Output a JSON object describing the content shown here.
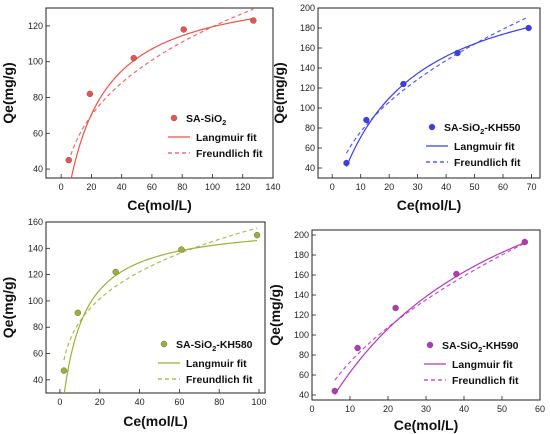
{
  "chart_data": [
    {
      "type": "scatter",
      "x_label": "Ce(mol/L)",
      "y_label": "Qe(mg/g)",
      "xlim": [
        -10,
        140
      ],
      "ylim": [
        35,
        130
      ],
      "x_ticks": [
        0,
        20,
        40,
        60,
        80,
        100,
        120,
        140
      ],
      "y_ticks": [
        40,
        60,
        80,
        100,
        120
      ],
      "color": "#e8534f",
      "legend": {
        "marker_label": "SA-SiO",
        "marker_label_sub": "2",
        "marker_label_suffix": "",
        "langmuir_label": "Langmuir fit",
        "freundlich_label": "Freundlich fit"
      },
      "points": [
        {
          "x": 5,
          "y": 45
        },
        {
          "x": 19,
          "y": 82
        },
        {
          "x": 48,
          "y": 102
        },
        {
          "x": 81,
          "y": 118
        },
        {
          "x": 127,
          "y": 123
        }
      ],
      "langmuir": {
        "qmax": 144.6,
        "K": 0.0476
      },
      "freundlich": {
        "k": 25.88,
        "n": 3.01
      }
    },
    {
      "type": "scatter",
      "x_label": "Ce(mol/L)",
      "y_label": "Qe(mg/g)",
      "xlim": [
        -5,
        73
      ],
      "ylim": [
        30,
        200
      ],
      "x_ticks": [
        0,
        10,
        20,
        30,
        40,
        50,
        60,
        70
      ],
      "y_ticks": [
        40,
        60,
        80,
        100,
        120,
        140,
        160,
        180,
        200
      ],
      "color": "#3a3ee6",
      "legend": {
        "marker_label": "SA-SiO",
        "marker_label_sub": "2",
        "marker_label_suffix": "-KH550",
        "langmuir_label": "Langmuir fit",
        "freundlich_label": "Freundlich fit"
      },
      "points": [
        {
          "x": 5,
          "y": 45
        },
        {
          "x": 12,
          "y": 88
        },
        {
          "x": 25,
          "y": 124
        },
        {
          "x": 44,
          "y": 155
        },
        {
          "x": 69,
          "y": 180
        }
      ],
      "langmuir": {
        "qmax": 245.1,
        "K": 0.0406
      },
      "freundlich": {
        "k": 25.45,
        "n": 2.1
      }
    },
    {
      "type": "scatter",
      "x_label": "Ce(mol/L)",
      "y_label": "Qe(mg/g)",
      "xlim": [
        -7,
        103
      ],
      "ylim": [
        30,
        160
      ],
      "x_ticks": [
        0,
        20,
        40,
        60,
        80,
        100
      ],
      "y_ticks": [
        40,
        60,
        80,
        100,
        120,
        140,
        160
      ],
      "color": "#9aaf3c",
      "legend": {
        "marker_label": "SA-SiO",
        "marker_label_sub": "2",
        "marker_label_suffix": "-KH580",
        "langmuir_label": "Langmuir fit",
        "freundlich_label": "Freundlich fit"
      },
      "points": [
        {
          "x": 2,
          "y": 47
        },
        {
          "x": 9,
          "y": 91
        },
        {
          "x": 28,
          "y": 122
        },
        {
          "x": 61,
          "y": 139
        },
        {
          "x": 99,
          "y": 150
        }
      ],
      "langmuir": {
        "qmax": 159.9,
        "K": 0.105
      },
      "freundlich": {
        "k": 45.78,
        "n": 3.76
      }
    },
    {
      "type": "scatter",
      "x_label": "Ce(mol/L)",
      "y_label": "Qe(mg/g)",
      "xlim": [
        0,
        60
      ],
      "ylim": [
        35,
        205
      ],
      "x_ticks": [
        0,
        10,
        20,
        30,
        40,
        50,
        60
      ],
      "y_ticks": [
        40,
        60,
        80,
        100,
        120,
        140,
        160,
        180,
        200
      ],
      "color": "#b137b5",
      "legend": {
        "marker_label": "SA-SiO",
        "marker_label_sub": "2",
        "marker_label_suffix": "-KH590",
        "langmuir_label": "Langmuir fit",
        "freundlich_label": "Freundlich fit"
      },
      "points": [
        {
          "x": 6,
          "y": 44
        },
        {
          "x": 12,
          "y": 87
        },
        {
          "x": 22,
          "y": 127
        },
        {
          "x": 38,
          "y": 161
        },
        {
          "x": 56,
          "y": 193
        }
      ],
      "langmuir": {
        "qmax": 350.0,
        "K": 0.0218
      },
      "freundlich": {
        "k": 20.0,
        "n": 1.78
      }
    }
  ]
}
